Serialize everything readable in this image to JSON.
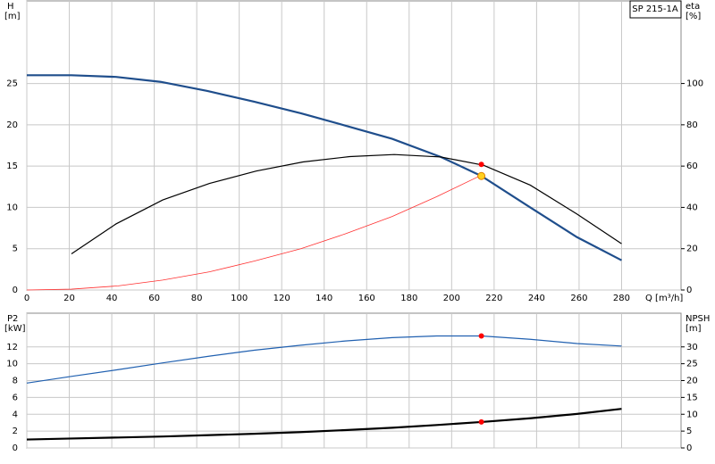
{
  "chart_data": [
    {
      "type": "line",
      "ylabel": "H",
      "yunit": "[m]",
      "y2label": "eta",
      "y2unit": "[%]",
      "xlabel": "Q [m³/h]",
      "title": "SP 215-1A",
      "xlim": [
        0,
        308
      ],
      "xticks": [
        0,
        20,
        40,
        60,
        80,
        100,
        120,
        140,
        160,
        180,
        200,
        220,
        240,
        260,
        280
      ],
      "ylim": [
        0,
        35
      ],
      "yticks": [
        0,
        5,
        10,
        15,
        20,
        25
      ],
      "y2lim": [
        0,
        140
      ],
      "y2ticks": [
        0,
        20,
        40,
        60,
        80,
        100
      ],
      "grid": true,
      "series": [
        {
          "color": "#1f4e8c",
          "width": 2.2,
          "axis": "y",
          "x": [
            0,
            21,
            42,
            63,
            85,
            107,
            129,
            150,
            172,
            195,
            214,
            237,
            259,
            280
          ],
          "values": [
            26,
            26,
            25.8,
            25.2,
            24.1,
            22.8,
            21.4,
            19.9,
            18.3,
            16.1,
            13.8,
            10,
            6.4,
            3.6
          ]
        },
        {
          "color": "#000000",
          "width": 1.2,
          "axis": "y2",
          "x": [
            21,
            42,
            64,
            86,
            108,
            130,
            152,
            173,
            195,
            215,
            237,
            259,
            280
          ],
          "values": [
            17.5,
            32,
            43.6,
            51.6,
            57.6,
            62,
            64.6,
            65.6,
            64.4,
            60.4,
            50.8,
            36.8,
            22.4
          ]
        },
        {
          "color": "#ff3030",
          "width": 0.8,
          "axis": "y",
          "x": [
            0,
            21,
            43,
            64,
            86,
            107,
            129,
            150,
            172,
            193,
            214
          ],
          "values": [
            0,
            0.1,
            0.5,
            1.2,
            2.2,
            3.5,
            5,
            6.8,
            8.9,
            11.3,
            13.9
          ]
        }
      ],
      "points": [
        {
          "x": 214,
          "value": 60.8,
          "axis": "y2",
          "color": "#ff0000"
        },
        {
          "x": 214,
          "value": 13.8,
          "axis": "y",
          "color": "#ffd020"
        }
      ]
    },
    {
      "type": "line",
      "ylabel": "P2",
      "yunit": "[kW]",
      "y2label": "NPSH",
      "y2unit": "[m]",
      "xlim": [
        0,
        308
      ],
      "xticks": [
        0,
        20,
        40,
        60,
        80,
        100,
        120,
        140,
        160,
        180,
        200,
        220,
        240,
        260,
        280
      ],
      "xtick_labels": false,
      "ylim": [
        0,
        16
      ],
      "yticks": [
        0,
        2,
        4,
        6,
        8,
        10,
        12
      ],
      "y2lim": [
        0,
        40
      ],
      "y2ticks": [
        0,
        5,
        10,
        15,
        20,
        25,
        30
      ],
      "grid": true,
      "series": [
        {
          "color": "#2060b0",
          "width": 1.2,
          "axis": "y",
          "x": [
            0,
            21,
            43,
            64,
            86,
            107,
            129,
            150,
            172,
            193,
            214,
            237,
            259,
            280
          ],
          "values": [
            7.7,
            8.5,
            9.3,
            10.1,
            10.9,
            11.6,
            12.2,
            12.7,
            13.1,
            13.3,
            13.3,
            12.9,
            12.4,
            12.1
          ]
        },
        {
          "color": "#000000",
          "width": 2.2,
          "axis": "y2",
          "x": [
            0,
            21,
            43,
            64,
            86,
            107,
            129,
            150,
            172,
            193,
            214,
            237,
            259,
            280
          ],
          "values": [
            2.5,
            2.8,
            3.1,
            3.4,
            3.8,
            4.2,
            4.7,
            5.3,
            6,
            6.8,
            7.7,
            8.8,
            10.1,
            11.6
          ]
        }
      ],
      "points": [
        {
          "x": 214,
          "value": 13.3,
          "axis": "y",
          "color": "#ff0000"
        },
        {
          "x": 214,
          "value": 7.7,
          "axis": "y2",
          "color": "#ff0000"
        }
      ]
    }
  ]
}
